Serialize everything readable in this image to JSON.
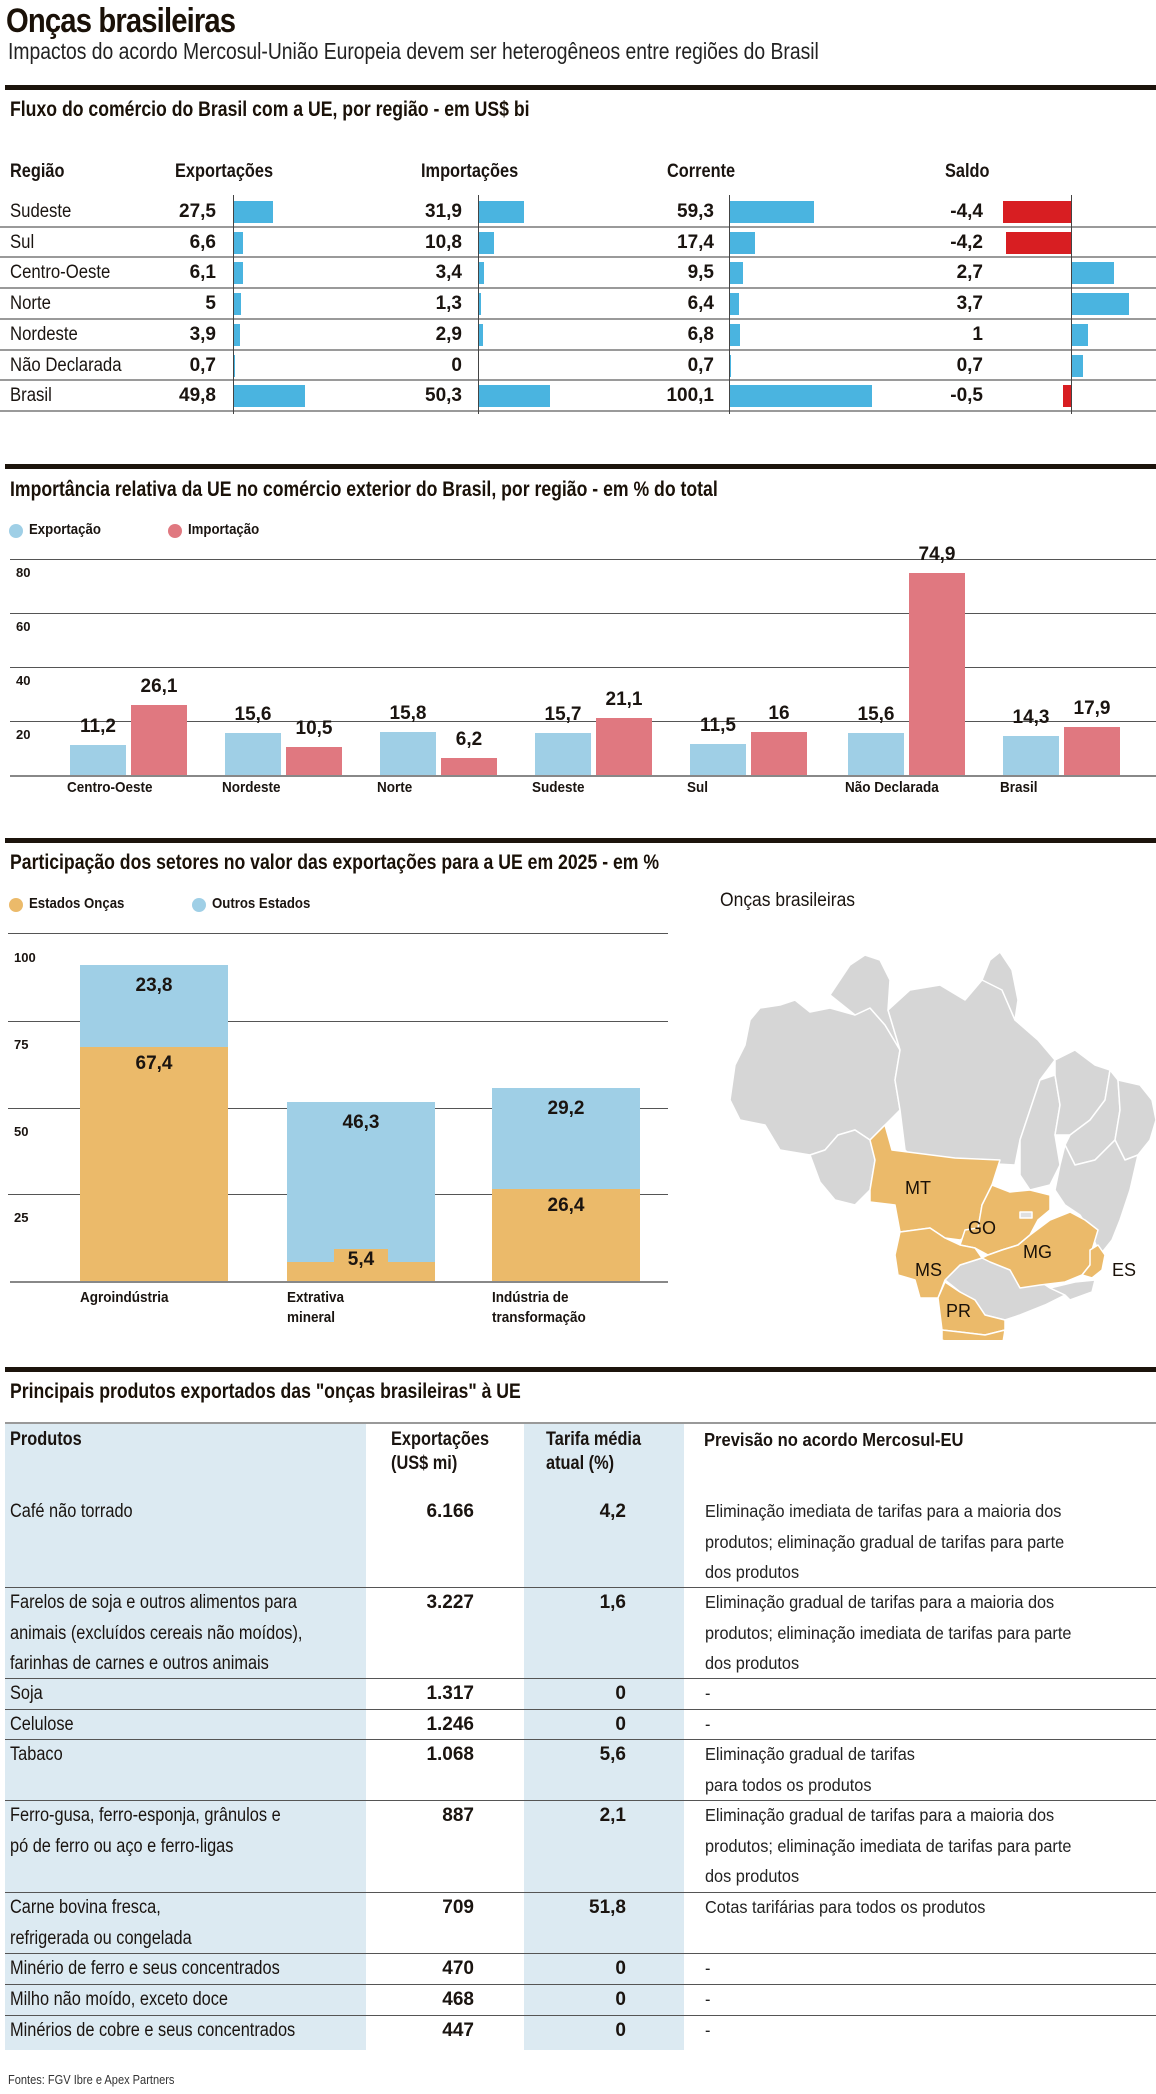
{
  "header": {
    "title": "Onças brasileiras",
    "subtitle": "Impactos do acordo Mercosul-União Europeia devem ser heterogêneos entre regiões do Brasil"
  },
  "colors": {
    "bar_blue": "#4ab4e0",
    "bar_red": "#d81e22",
    "export_light_blue": "#9fcfe6",
    "import_pink": "#e07880",
    "oncas_orange": "#ebba6a",
    "outros_blue": "#9fcfe6",
    "map_grey": "#d6d6d6",
    "table_shade": "#dceaf2"
  },
  "chart_data": [
    {
      "type": "table",
      "title": "Fluxo do comércio do Brasil com a UE, por região - em US$ bi",
      "columns": [
        "Região",
        "Exportações",
        "Importações",
        "Corrente",
        "Saldo"
      ],
      "rows": [
        {
          "region": "Sudeste",
          "exportacoes": 27.5,
          "importacoes": 31.9,
          "corrente": 59.3,
          "saldo": -4.4,
          "labels": [
            "27,5",
            "31,9",
            "59,3",
            "-4,4"
          ]
        },
        {
          "region": "Sul",
          "exportacoes": 6.6,
          "importacoes": 10.8,
          "corrente": 17.4,
          "saldo": -4.2,
          "labels": [
            "6,6",
            "10,8",
            "17,4",
            "-4,2"
          ]
        },
        {
          "region": "Centro-Oeste",
          "exportacoes": 6.1,
          "importacoes": 3.4,
          "corrente": 9.5,
          "saldo": 2.7,
          "labels": [
            "6,1",
            "3,4",
            "9,5",
            "2,7"
          ]
        },
        {
          "region": "Norte",
          "exportacoes": 5,
          "importacoes": 1.3,
          "corrente": 6.4,
          "saldo": 3.7,
          "labels": [
            "5",
            "1,3",
            "6,4",
            "3,7"
          ]
        },
        {
          "region": "Nordeste",
          "exportacoes": 3.9,
          "importacoes": 2.9,
          "corrente": 6.8,
          "saldo": 1,
          "labels": [
            "3,9",
            "2,9",
            "6,8",
            "1"
          ]
        },
        {
          "region": "Não Declarada",
          "exportacoes": 0.7,
          "importacoes": 0,
          "corrente": 0.7,
          "saldo": 0.7,
          "labels": [
            "0,7",
            "0",
            "0,7",
            "0,7"
          ]
        },
        {
          "region": "Brasil",
          "exportacoes": 49.8,
          "importacoes": 50.3,
          "corrente": 100.1,
          "saldo": -0.5,
          "labels": [
            "49,8",
            "50,3",
            "100,1",
            "-0,5"
          ]
        }
      ]
    },
    {
      "type": "bar",
      "title": "Importância relativa da UE no comércio exterior do Brasil, por região - em % do total",
      "categories": [
        "Centro-Oeste",
        "Nordeste",
        "Norte",
        "Sudeste",
        "Sul",
        "Não Declarada",
        "Brasil"
      ],
      "series": [
        {
          "name": "Exportação",
          "values": [
            11.2,
            15.6,
            15.8,
            15.7,
            11.5,
            15.6,
            14.3
          ],
          "labels": [
            "11,2",
            "15,6",
            "15,8",
            "15,7",
            "11,5",
            "15,6",
            "14,3"
          ]
        },
        {
          "name": "Importação",
          "values": [
            26.1,
            10.5,
            6.2,
            21.1,
            16,
            74.9,
            17.9
          ],
          "labels": [
            "26,1",
            "10,5",
            "6,2",
            "21,1",
            "16",
            "74,9",
            "17,9"
          ]
        }
      ],
      "yticks": [
        "80",
        "60",
        "40",
        "20"
      ],
      "ylim": [
        0,
        80
      ],
      "grid": true,
      "legend": "top-left"
    },
    {
      "type": "bar",
      "stacked": true,
      "title": "Participação dos setores no valor das exportações para a UE em 2025 - em %",
      "categories": [
        "Agroindústria",
        "Extrativa mineral",
        "Indústria de transformação"
      ],
      "category_lines": [
        [
          "Agroindústria"
        ],
        [
          "Extrativa",
          "mineral"
        ],
        [
          "Indústria de",
          "transformação"
        ]
      ],
      "series": [
        {
          "name": "Estados Onças",
          "values": [
            67.4,
            5.4,
            26.4
          ],
          "labels": [
            "67,4",
            "5,4",
            "26,4"
          ]
        },
        {
          "name": "Outros Estados",
          "values": [
            23.8,
            46.3,
            29.2
          ],
          "labels": [
            "23,8",
            "46,3",
            "29,2"
          ]
        }
      ],
      "yticks": [
        "100",
        "75",
        "50",
        "25"
      ],
      "ylim": [
        0,
        100
      ],
      "grid": true,
      "legend": "top-left"
    }
  ],
  "map": {
    "title": "Onças brasileiras",
    "highlighted_states": [
      "MT",
      "GO",
      "MS",
      "MG",
      "ES",
      "PR",
      "SC",
      "RS"
    ]
  },
  "products_table": {
    "title": "Principais produtos exportados das \"onças brasileiras\" à UE",
    "headers": {
      "produtos": "Produtos",
      "exportacoes": [
        "Exportações",
        "(US$ mi)"
      ],
      "tarifa": [
        "Tarifa média",
        "atual (%)"
      ],
      "previsao": "Previsão no acordo Mercosul-EU"
    },
    "rows": [
      {
        "produto": [
          "Café não torrado"
        ],
        "exportacoes": "6.166",
        "tarifa": "4,2",
        "previsao": [
          "Eliminação imediata de tarifas para a maioria dos",
          "produtos; eliminação gradual de tarifas para parte",
          "dos produtos"
        ]
      },
      {
        "produto": [
          "Farelos de soja e outros alimentos para",
          "animais (excluídos cereais não moídos),",
          "farinhas de carnes e outros animais"
        ],
        "exportacoes": "3.227",
        "tarifa": "1,6",
        "previsao": [
          "Eliminação gradual de tarifas para a maioria dos",
          "produtos; eliminação imediata de tarifas para parte",
          "dos produtos"
        ]
      },
      {
        "produto": [
          "Soja"
        ],
        "exportacoes": "1.317",
        "tarifa": "0",
        "previsao": [
          "-"
        ]
      },
      {
        "produto": [
          "Celulose"
        ],
        "exportacoes": "1.246",
        "tarifa": "0",
        "previsao": [
          "-"
        ]
      },
      {
        "produto": [
          "Tabaco"
        ],
        "exportacoes": "1.068",
        "tarifa": "5,6",
        "previsao": [
          "Eliminação gradual de tarifas",
          "para todos os produtos"
        ]
      },
      {
        "produto": [
          "Ferro-gusa, ferro-esponja, grânulos e",
          "pó de ferro ou aço e ferro-ligas"
        ],
        "exportacoes": "887",
        "tarifa": "2,1",
        "previsao": [
          "Eliminação gradual de tarifas para a maioria dos",
          "produtos; eliminação imediata de tarifas para parte",
          "dos produtos"
        ]
      },
      {
        "produto": [
          "Carne bovina fresca,",
          "refrigerada ou congelada"
        ],
        "exportacoes": "709",
        "tarifa": "51,8",
        "previsao": [
          "Cotas tarifárias para todos os produtos"
        ]
      },
      {
        "produto": [
          "Minério de ferro e seus concentrados"
        ],
        "exportacoes": "470",
        "tarifa": "0",
        "previsao": [
          "-"
        ]
      },
      {
        "produto": [
          "Milho não moído, exceto doce"
        ],
        "exportacoes": "468",
        "tarifa": "0",
        "previsao": [
          "-"
        ]
      },
      {
        "produto": [
          "Minérios de cobre e seus concentrados"
        ],
        "exportacoes": "447",
        "tarifa": "0",
        "previsao": [
          "-"
        ]
      }
    ]
  },
  "source": "Fontes: FGV Ibre e Apex Partners"
}
